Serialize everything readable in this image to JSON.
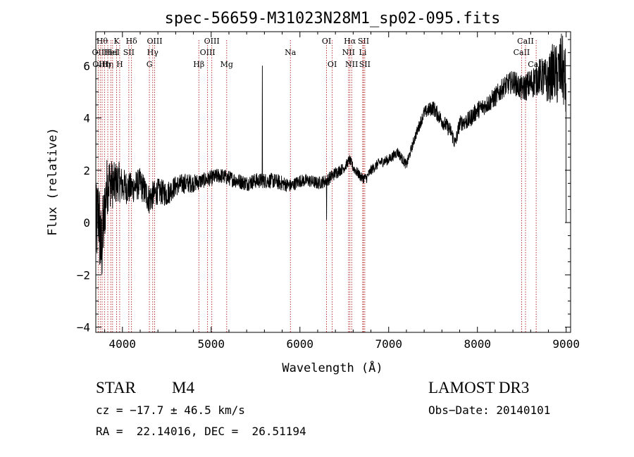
{
  "chart_data": {
    "type": "line",
    "title": "spec-56659-M31023N28M1_sp02-095.fits",
    "xlabel": "Wavelength (Å)",
    "ylabel": "Flux (relative)",
    "xlim": [
      3700,
      9050
    ],
    "ylim": [
      -4.2,
      7.3
    ],
    "xticks": [
      4000,
      5000,
      6000,
      7000,
      8000,
      9000
    ],
    "yticks": [
      -4,
      -2,
      0,
      2,
      4,
      6
    ],
    "spectrum_anchors": {
      "wavelength": [
        3700,
        3730,
        3760,
        3790,
        3820,
        3850,
        3900,
        3950,
        4000,
        4100,
        4200,
        4300,
        4400,
        4500,
        4600,
        4700,
        4800,
        4900,
        5000,
        5100,
        5200,
        5300,
        5400,
        5500,
        5600,
        5700,
        5800,
        5900,
        6000,
        6100,
        6200,
        6300,
        6400,
        6500,
        6560,
        6600,
        6650,
        6700,
        6750,
        6800,
        6900,
        7000,
        7100,
        7200,
        7300,
        7400,
        7500,
        7600,
        7700,
        7750,
        7800,
        7900,
        8000,
        8100,
        8200,
        8300,
        8400,
        8500,
        8600,
        8700,
        8800,
        8850,
        8900,
        8950,
        9000
      ],
      "flux": [
        -0.5,
        0.5,
        -1.2,
        0.0,
        1.3,
        1.6,
        1.4,
        1.6,
        1.4,
        1.3,
        1.5,
        0.9,
        1.2,
        1.1,
        1.4,
        1.5,
        1.5,
        1.6,
        1.7,
        1.8,
        1.7,
        1.6,
        1.5,
        1.6,
        1.6,
        1.6,
        1.5,
        1.4,
        1.6,
        1.6,
        1.5,
        1.6,
        1.9,
        2.1,
        2.4,
        2.1,
        1.9,
        1.7,
        1.7,
        2.0,
        2.3,
        2.4,
        2.7,
        2.2,
        3.3,
        4.2,
        4.4,
        3.9,
        3.5,
        3.0,
        3.8,
        3.9,
        4.3,
        4.5,
        4.8,
        5.2,
        5.4,
        5.1,
        5.3,
        5.6,
        5.4,
        5.8,
        5.6,
        6.0,
        5.2
      ],
      "noise_amplitude": [
        1.8,
        1.6,
        1.8,
        1.4,
        1.2,
        1.0,
        0.9,
        0.8,
        0.7,
        0.6,
        0.6,
        0.6,
        0.5,
        0.5,
        0.4,
        0.4,
        0.35,
        0.3,
        0.3,
        0.3,
        0.3,
        0.3,
        0.3,
        0.3,
        0.3,
        0.3,
        0.3,
        0.25,
        0.25,
        0.25,
        0.25,
        0.25,
        0.25,
        0.2,
        0.2,
        0.2,
        0.2,
        0.2,
        0.2,
        0.2,
        0.2,
        0.2,
        0.2,
        0.2,
        0.2,
        0.25,
        0.3,
        0.3,
        0.3,
        0.3,
        0.3,
        0.35,
        0.35,
        0.35,
        0.4,
        0.4,
        0.45,
        0.5,
        0.6,
        0.7,
        0.9,
        1.1,
        1.2,
        1.3,
        1.4
      ]
    },
    "spikes": [
      {
        "wavelength": 5577,
        "flux": 6.0
      },
      {
        "wavelength": 6300,
        "flux": 0.1
      },
      {
        "wavelength": 9000,
        "flux": 0.0
      }
    ],
    "line_markers": [
      {
        "wavelength": 3727,
        "label": "OII",
        "row": 2
      },
      {
        "wavelength": 3750,
        "label": "OIII",
        "row": 3
      },
      {
        "wavelength": 3771,
        "label": "Hθ",
        "row": 1
      },
      {
        "wavelength": 3798,
        "label": "Hη",
        "row": 3
      },
      {
        "wavelength": 3835,
        "label": "Hη",
        "row": 3
      },
      {
        "wavelength": 3869,
        "label": "HeI",
        "row": 2
      },
      {
        "wavelength": 3889,
        "label": "HeI",
        "row": 2
      },
      {
        "wavelength": 3934,
        "label": "K",
        "row": 1
      },
      {
        "wavelength": 3969,
        "label": "H",
        "row": 3
      },
      {
        "wavelength": 4072,
        "label": "SII",
        "row": 2
      },
      {
        "wavelength": 4102,
        "label": "Hδ",
        "row": 1
      },
      {
        "wavelength": 4304,
        "label": "G",
        "row": 3
      },
      {
        "wavelength": 4341,
        "label": "Hγ",
        "row": 2
      },
      {
        "wavelength": 4363,
        "label": "OIII",
        "row": 1
      },
      {
        "wavelength": 4861,
        "label": "Hβ",
        "row": 3
      },
      {
        "wavelength": 4959,
        "label": "OIII",
        "row": 2
      },
      {
        "wavelength": 5007,
        "label": "OIII",
        "row": 1
      },
      {
        "wavelength": 5175,
        "label": "Mg",
        "row": 3
      },
      {
        "wavelength": 5893,
        "label": "Na",
        "row": 2
      },
      {
        "wavelength": 6300,
        "label": "OI",
        "row": 1
      },
      {
        "wavelength": 6364,
        "label": "OI",
        "row": 3
      },
      {
        "wavelength": 6548,
        "label": "NII",
        "row": 2
      },
      {
        "wavelength": 6563,
        "label": "Hα",
        "row": 1
      },
      {
        "wavelength": 6583,
        "label": "NII",
        "row": 3
      },
      {
        "wavelength": 6708,
        "label": "Li",
        "row": 2
      },
      {
        "wavelength": 6716,
        "label": "SII",
        "row": 1
      },
      {
        "wavelength": 6731,
        "label": "SII",
        "row": 3
      },
      {
        "wavelength": 8498,
        "label": "CaII",
        "row": 2
      },
      {
        "wavelength": 8542,
        "label": "CaII",
        "row": 1
      },
      {
        "wavelength": 8662,
        "label": "CaII",
        "row": 3
      }
    ]
  },
  "info": {
    "object_class": "STAR",
    "subclass": "M4",
    "survey": "LAMOST DR3",
    "redshift_line": "cz = −17.7 ± 46.5 km/s",
    "obs_date_line": "Obs−Date: 20140101",
    "coords_line": "RA =  22.14016, DEC =  26.51194"
  },
  "colors": {
    "spectrum": "#000000",
    "marker": "#b22222",
    "axis": "#000000"
  }
}
